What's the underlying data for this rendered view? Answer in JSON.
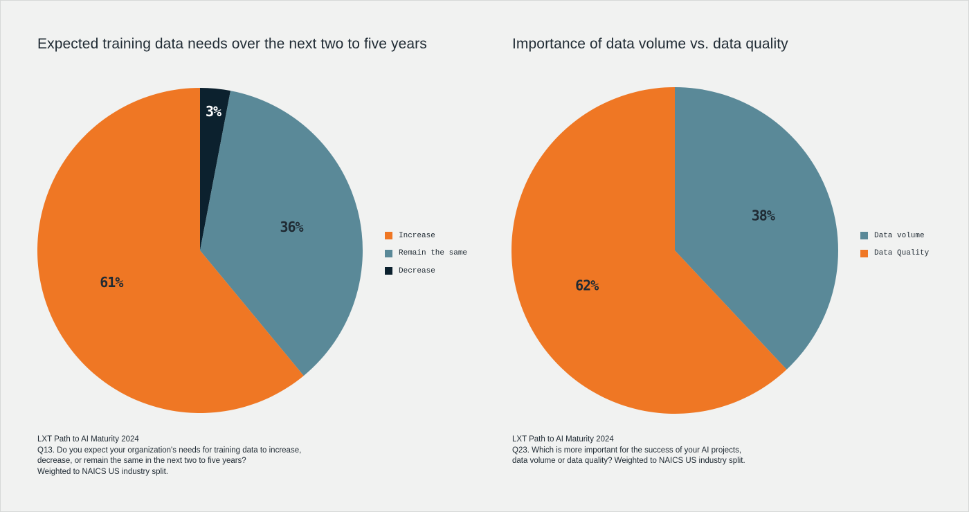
{
  "colors": {
    "background": "#f1f2f1",
    "orange": "#ef7724",
    "slate": "#5a8998",
    "navy": "#0c212e",
    "text": "#1f2a33"
  },
  "chart_data": [
    {
      "type": "pie",
      "title": "Expected training data needs over the next two to five years",
      "slices": [
        {
          "label": "Decrease",
          "value": 3,
          "display": "3%",
          "color": "#0c212e"
        },
        {
          "label": "Remain the same",
          "value": 36,
          "display": "36%",
          "color": "#5a8998"
        },
        {
          "label": "Increase",
          "value": 61,
          "display": "61%",
          "color": "#ef7724"
        }
      ],
      "legend": {
        "placement": "right",
        "entries": [
          {
            "label": "Increase",
            "color": "#ef7724"
          },
          {
            "label": "Remain the same",
            "color": "#5a8998"
          },
          {
            "label": "Decrease",
            "color": "#0c212e"
          }
        ]
      },
      "source": [
        "LXT Path to AI Maturity 2024",
        "Q13. Do you expect your organization's needs for training data to increase,",
        "decrease, or remain the same in the next two to five years?",
        "Weighted to NAICS US industry split."
      ]
    },
    {
      "type": "pie",
      "title": "Importance of data volume vs. data quality",
      "slices": [
        {
          "label": "Data volume",
          "value": 38,
          "display": "38%",
          "color": "#5a8998"
        },
        {
          "label": "Data Quality",
          "value": 62,
          "display": "62%",
          "color": "#ef7724"
        }
      ],
      "legend": {
        "placement": "right",
        "entries": [
          {
            "label": "Data volume",
            "color": "#5a8998"
          },
          {
            "label": "Data Quality",
            "color": "#ef7724"
          }
        ]
      },
      "source": [
        "LXT Path to AI Maturity 2024",
        "Q23. Which is more important for the success of your AI projects,",
        "data volume or data quality? Weighted to NAICS US industry split."
      ]
    }
  ]
}
